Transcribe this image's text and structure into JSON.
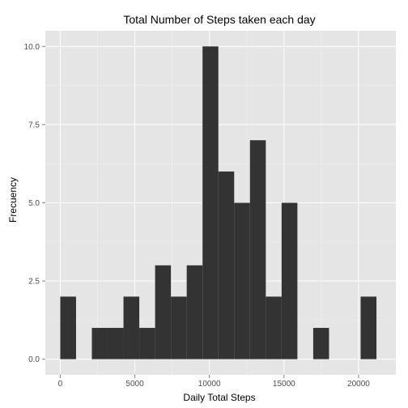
{
  "chart_data": {
    "type": "bar",
    "title": "Total Number of Steps taken each day",
    "xlabel": "Daily Total Steps",
    "ylabel": "Frecuency",
    "xlim": [
      -1000,
      22500
    ],
    "ylim": [
      -0.5,
      10.5
    ],
    "x_ticks": [
      "0",
      "5000",
      "10000",
      "15000",
      "20000"
    ],
    "x_tick_values": [
      0,
      5000,
      10000,
      15000,
      20000
    ],
    "y_ticks": [
      "0.0",
      "2.5",
      "5.0",
      "7.5",
      "10.0"
    ],
    "y_tick_values": [
      0,
      2.5,
      5,
      7.5,
      10
    ],
    "bin_width": 1060,
    "bins": [
      {
        "start": 0,
        "count": 2
      },
      {
        "start": 2120,
        "count": 1
      },
      {
        "start": 3180,
        "count": 1
      },
      {
        "start": 4240,
        "count": 2
      },
      {
        "start": 5300,
        "count": 1
      },
      {
        "start": 6360,
        "count": 3
      },
      {
        "start": 7420,
        "count": 2
      },
      {
        "start": 8480,
        "count": 3
      },
      {
        "start": 9540,
        "count": 10
      },
      {
        "start": 10600,
        "count": 6
      },
      {
        "start": 11660,
        "count": 5
      },
      {
        "start": 12720,
        "count": 7
      },
      {
        "start": 13780,
        "count": 2
      },
      {
        "start": 14840,
        "count": 5
      },
      {
        "start": 16960,
        "count": 1
      },
      {
        "start": 20140,
        "count": 2
      }
    ],
    "grid": true,
    "colors": {
      "panel_background": "#e5e5e5",
      "grid_major": "#ffffff",
      "grid_minor": "#f2f2f2",
      "bar_fill": "#333333",
      "tick_label": "#4d4d4d"
    }
  }
}
